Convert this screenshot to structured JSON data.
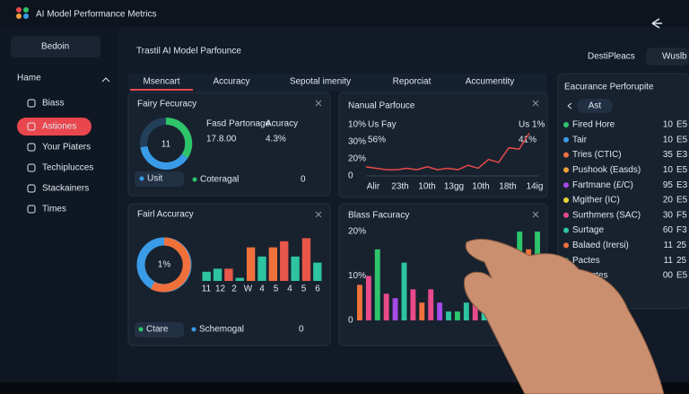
{
  "window": {
    "title": "AI Model Performance Metrics"
  },
  "sidebar": {
    "search": "Bedoin",
    "section": "Hame",
    "items": [
      "Biass",
      "Astiones",
      "Your Piaters",
      "Techiplucces",
      "Stackainers",
      "Times"
    ],
    "active": 1
  },
  "header": {
    "title": "Trastil AI Model Parfounce",
    "right_label": "DestiPleacs",
    "button": "Wuslb A"
  },
  "tabs": {
    "items": [
      "Msencart",
      "Accuracy",
      "Sepotal imenity",
      "Reporciat",
      "Accumentity"
    ],
    "active": 0
  },
  "cards": {
    "fairy": {
      "title": "Fairy Fecuracy",
      "donut_label": "11",
      "stat1_label": "Fasd Partonage",
      "stat1_value": "17.8.00",
      "stat2_label": "Acuracy",
      "stat2_value": "4.3%",
      "legend": [
        "Usit",
        "Coteragal"
      ],
      "footer_value": "0"
    },
    "manual": {
      "title": "Nanual Parfouce",
      "y_labels": [
        "10%",
        "30%",
        "20%",
        "0"
      ],
      "stat1_label": "Us Fay",
      "stat1_value": "56%",
      "stat2_label": "Us 1%",
      "stat2_value": "41%",
      "x_labels": [
        "Alir",
        "23th",
        "10th",
        "13gg",
        "10th",
        "18th",
        "14ig"
      ],
      "line": {
        "color": "#e84a4a",
        "ylim": [
          0,
          30
        ],
        "values": [
          5,
          4,
          3,
          3,
          4,
          3,
          5,
          3,
          4,
          3,
          6,
          4,
          10,
          8,
          18,
          17,
          28
        ]
      }
    },
    "fair": {
      "title": "Fairl Accuracy",
      "donut_label": "1%",
      "x_labels": [
        "11",
        "12",
        "2",
        "W",
        "4",
        "5",
        "4",
        "5",
        "6"
      ],
      "legend": [
        "Ctare",
        "Schemogal"
      ],
      "footer_value": "0",
      "bars": {
        "ylim": [
          0,
          15
        ],
        "values": [
          3,
          4,
          4,
          1,
          11,
          8,
          11,
          13,
          8,
          14,
          6
        ],
        "colors": [
          "#2ec4a0",
          "#2ec4a0",
          "#e8574a",
          "#2ec4a0",
          "#f0703c",
          "#2ec4a0",
          "#f0703c",
          "#e8574a",
          "#2ec4a0",
          "#e8574a",
          "#2ec4a0"
        ]
      }
    },
    "bias": {
      "title": "Blass Facuracy",
      "bars": {
        "ylim": [
          0,
          20
        ],
        "yticks": [
          {
            "value": 20,
            "label": "20%"
          },
          {
            "value": 10,
            "label": "10%"
          },
          0
        ],
        "values": [
          8,
          10,
          16,
          6,
          5,
          13,
          7,
          4,
          7,
          4,
          2,
          2,
          4,
          10,
          4,
          8,
          11,
          16,
          20,
          16,
          20
        ],
        "colors": [
          "#f0703c",
          "#e84a8a",
          "#2ec46a",
          "#e84a8a",
          "#a64ae8",
          "#2ec4a0",
          "#e84a8a",
          "#f0703c",
          "#e84a8a",
          "#a64ae8",
          "#2ec4a0",
          "#2ec46a",
          "#2ec4a0",
          "#e84a8a",
          "#2ec4a0",
          "#f0703c",
          "#2ec46a",
          "#2ec4a0",
          "#2ec46a",
          "#f0703c",
          "#2ec46a"
        ]
      }
    }
  },
  "panel": {
    "title": "Eacurance Perforupite",
    "button": "Ast",
    "rows": [
      {
        "name": "Fired Hore",
        "value": "10",
        "code": "E5",
        "color": "#2ec46a"
      },
      {
        "name": "Tair",
        "value": "10",
        "code": "E5",
        "color": "#3a9be8"
      },
      {
        "name": "Tries (CTIC)",
        "value": "35",
        "code": "E3",
        "color": "#f0703c"
      },
      {
        "name": "Pushook (Easds)",
        "value": "10",
        "code": "E5",
        "color": "#f0a03c"
      },
      {
        "name": "Fartmane (£/C)",
        "value": "95",
        "code": "E3",
        "color": "#a64ae8"
      },
      {
        "name": "Mgither (IC)",
        "value": "20",
        "code": "E5",
        "color": "#f0d03c"
      },
      {
        "name": "Surthmers (SAC)",
        "value": "30",
        "code": "F5",
        "color": "#e84a8a"
      },
      {
        "name": "Surtage",
        "value": "60",
        "code": "F3",
        "color": "#2ec4a0"
      },
      {
        "name": "Balaed (Irersi)",
        "value": "11",
        "code": "25",
        "color": "#f0703c"
      },
      {
        "name": "Pactes",
        "value": "11",
        "code": "25",
        "color": "#2ec46a"
      },
      {
        "name": "Paractes",
        "value": "00",
        "code": "E5",
        "color": "#e84a4a"
      }
    ]
  }
}
